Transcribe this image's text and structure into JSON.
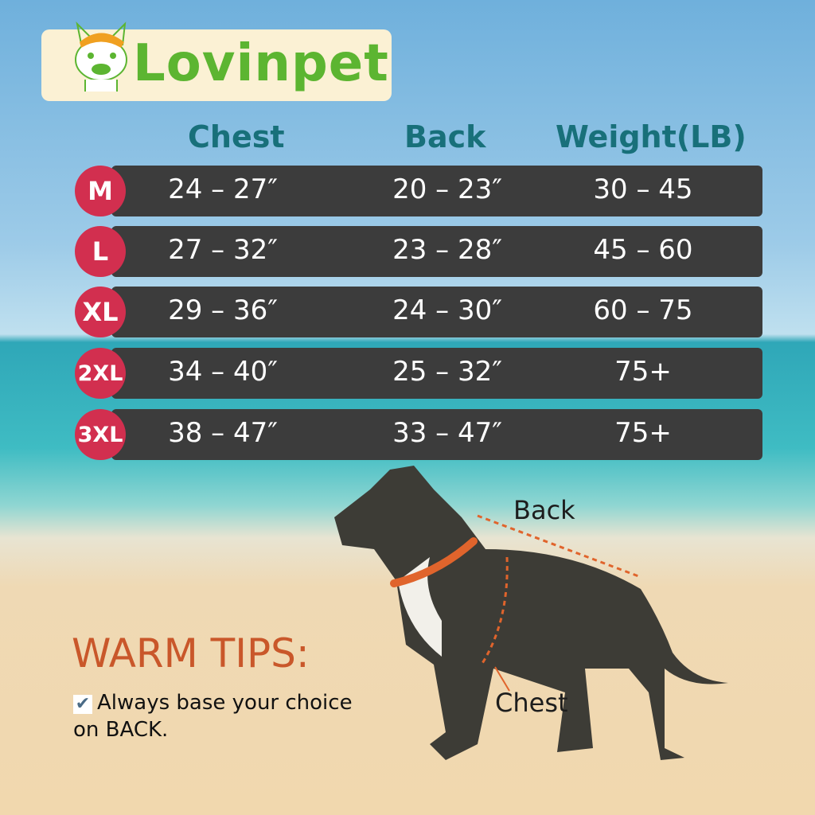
{
  "brand": {
    "name": "Lovinpet"
  },
  "headers": {
    "chest": "Chest",
    "back": "Back",
    "weight": "Weight(LB)"
  },
  "rows": [
    {
      "size": "M",
      "chest": "24 – 27″",
      "back": "20 – 23″",
      "weight": "30 – 45"
    },
    {
      "size": "L",
      "chest": "27 – 32″",
      "back": "23 – 28″",
      "weight": "45 – 60"
    },
    {
      "size": "XL",
      "chest": "29 – 36″",
      "back": "24 – 30″",
      "weight": "60 – 75"
    },
    {
      "size": "2XL",
      "chest": "34 – 40″",
      "back": "25 – 32″",
      "weight": "75+"
    },
    {
      "size": "3XL",
      "chest": "38 – 47″",
      "back": "33 – 47″",
      "weight": "75+"
    }
  ],
  "diagram": {
    "back_label": "Back",
    "chest_label": "Chest"
  },
  "tips": {
    "title": "WARM TIPS:",
    "check_icon": "check-icon",
    "text": "Always base your choice on BACK."
  },
  "colors": {
    "badge": "#d22f4f",
    "row": "#3c3c3c",
    "header": "#18707a",
    "brand": "#5cb531",
    "tips": "#c9572a",
    "measure": "#e0642c"
  }
}
